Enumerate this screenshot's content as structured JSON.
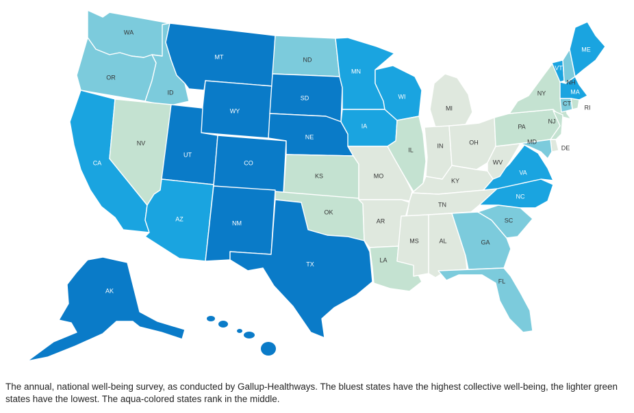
{
  "colors": {
    "dark": "#0a7bc8",
    "blue": "#1aa4e0",
    "aqua": "#7ccbdc",
    "mint": "#c4e2d1",
    "pale": "#dfe8de"
  },
  "states": {
    "WA": {
      "label": "WA",
      "tier": "aqua"
    },
    "OR": {
      "label": "OR",
      "tier": "aqua"
    },
    "CA": {
      "label": "CA",
      "tier": "blue"
    },
    "ID": {
      "label": "ID",
      "tier": "aqua"
    },
    "NV": {
      "label": "NV",
      "tier": "mint"
    },
    "MT": {
      "label": "MT",
      "tier": "dark"
    },
    "WY": {
      "label": "WY",
      "tier": "dark"
    },
    "UT": {
      "label": "UT",
      "tier": "dark"
    },
    "AZ": {
      "label": "AZ",
      "tier": "blue"
    },
    "CO": {
      "label": "CO",
      "tier": "dark"
    },
    "NM": {
      "label": "NM",
      "tier": "dark"
    },
    "ND": {
      "label": "ND",
      "tier": "aqua"
    },
    "SD": {
      "label": "SD",
      "tier": "dark"
    },
    "NE": {
      "label": "NE",
      "tier": "dark"
    },
    "KS": {
      "label": "KS",
      "tier": "mint"
    },
    "OK": {
      "label": "OK",
      "tier": "mint"
    },
    "TX": {
      "label": "TX",
      "tier": "dark"
    },
    "MN": {
      "label": "MN",
      "tier": "blue"
    },
    "IA": {
      "label": "IA",
      "tier": "blue"
    },
    "MO": {
      "label": "MO",
      "tier": "pale"
    },
    "AR": {
      "label": "AR",
      "tier": "pale"
    },
    "LA": {
      "label": "LA",
      "tier": "mint"
    },
    "WI": {
      "label": "WI",
      "tier": "blue"
    },
    "IL": {
      "label": "IL",
      "tier": "mint"
    },
    "MI": {
      "label": "MI",
      "tier": "pale"
    },
    "IN": {
      "label": "IN",
      "tier": "pale"
    },
    "OH": {
      "label": "OH",
      "tier": "pale"
    },
    "KY": {
      "label": "KY",
      "tier": "pale"
    },
    "TN": {
      "label": "TN",
      "tier": "pale"
    },
    "MS": {
      "label": "MS",
      "tier": "pale"
    },
    "AL": {
      "label": "AL",
      "tier": "pale"
    },
    "GA": {
      "label": "GA",
      "tier": "aqua"
    },
    "FL": {
      "label": "FL",
      "tier": "aqua"
    },
    "SC": {
      "label": "SC",
      "tier": "aqua"
    },
    "NC": {
      "label": "NC",
      "tier": "blue"
    },
    "VA": {
      "label": "VA",
      "tier": "blue"
    },
    "WV": {
      "label": "WV",
      "tier": "pale"
    },
    "PA": {
      "label": "PA",
      "tier": "mint"
    },
    "NY": {
      "label": "NY",
      "tier": "mint"
    },
    "NJ": {
      "label": "NJ",
      "tier": "mint"
    },
    "DE": {
      "label": "DE",
      "tier": "pale"
    },
    "MD": {
      "label": "MD",
      "tier": "aqua"
    },
    "VT": {
      "label": "VT",
      "tier": "blue"
    },
    "NH": {
      "label": "NH",
      "tier": "aqua"
    },
    "ME": {
      "label": "ME",
      "tier": "blue"
    },
    "MA": {
      "label": "MA",
      "tier": "blue"
    },
    "CT": {
      "label": "CT",
      "tier": "aqua"
    },
    "RI": {
      "label": "RI",
      "tier": "mint"
    },
    "AK": {
      "label": "AK",
      "tier": "dark"
    },
    "HI": {
      "label": "HI",
      "tier": "dark"
    }
  },
  "caption": "The annual, national well-being survey, as conducted by Gallup-Healthways. The bluest states have the highest collective well-being, the lighter green states have the lowest. The aqua-colored states rank in the middle."
}
